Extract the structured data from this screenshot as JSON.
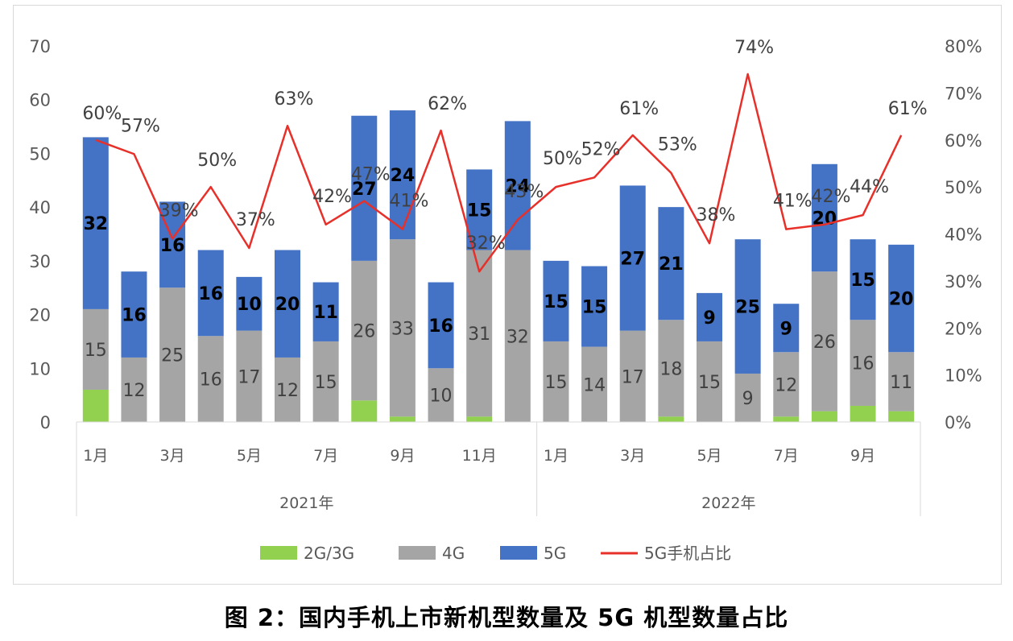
{
  "caption": "图 2：国内手机上市新机型数量及 5G 机型数量占比",
  "colors": {
    "g23": "#92d050",
    "g4": "#a5a5a5",
    "g5": "#4472c4",
    "ratio": "#e8302a"
  },
  "legend": [
    {
      "key": "g23",
      "label": "2G/3G",
      "kind": "bar"
    },
    {
      "key": "g4",
      "label": "4G",
      "kind": "bar"
    },
    {
      "key": "g5",
      "label": "5G",
      "kind": "bar"
    },
    {
      "key": "ratio",
      "label": "5G手机占比",
      "kind": "line"
    }
  ],
  "chart_data": {
    "type": "bar",
    "stacked": true,
    "years": [
      {
        "label": "2021年",
        "count": 12
      },
      {
        "label": "2022年",
        "count": 10
      }
    ],
    "month_tick_labels": [
      "1月",
      "",
      "3月",
      "",
      "5月",
      "",
      "7月",
      "",
      "9月",
      "",
      "11月",
      "",
      "1月",
      "",
      "3月",
      "",
      "5月",
      "",
      "7月",
      "",
      "9月",
      ""
    ],
    "y_left": {
      "min": 0,
      "max": 70,
      "ticks": [
        "0",
        "10",
        "20",
        "30",
        "40",
        "50",
        "60",
        "70"
      ]
    },
    "y_right": {
      "min": 0,
      "max": 80,
      "ticks": [
        "0%",
        "10%",
        "20%",
        "30%",
        "40%",
        "50%",
        "60%",
        "70%",
        "80%"
      ]
    },
    "series": [
      {
        "name": "2G/3G",
        "values": [
          6,
          0,
          0,
          0,
          0,
          0,
          0,
          4,
          1,
          0,
          1,
          0,
          0,
          0,
          0,
          1,
          0,
          0,
          1,
          2,
          3,
          2
        ]
      },
      {
        "name": "4G",
        "values": [
          15,
          12,
          25,
          16,
          17,
          12,
          15,
          26,
          33,
          10,
          31,
          32,
          15,
          14,
          17,
          18,
          15,
          9,
          12,
          26,
          16,
          11
        ],
        "labels": [
          "15",
          "12",
          "25",
          "16",
          "17",
          "12",
          "15",
          "26",
          "33",
          "10",
          "31",
          "32",
          "15",
          "14",
          "17",
          "18",
          "15",
          "9",
          "12",
          "26",
          "16",
          "11"
        ]
      },
      {
        "name": "5G",
        "values": [
          32,
          16,
          16,
          16,
          10,
          20,
          11,
          27,
          24,
          16,
          15,
          24,
          15,
          15,
          27,
          21,
          9,
          25,
          9,
          20,
          15,
          20
        ],
        "labels": [
          "32",
          "16",
          "16",
          "16",
          "10",
          "20",
          "11",
          "27",
          "24",
          "16",
          "15",
          "24",
          "15",
          "15",
          "27",
          "21",
          "9",
          "25",
          "9",
          "20",
          "15",
          "20"
        ]
      },
      {
        "name": "5G手机占比",
        "axis": "right",
        "values": [
          60,
          57,
          39,
          50,
          37,
          63,
          42,
          47,
          41,
          62,
          32,
          43,
          50,
          52,
          61,
          53,
          38,
          74,
          41,
          42,
          44,
          61
        ],
        "labels": [
          "60%",
          "57%",
          "39%",
          "50%",
          "37%",
          "63%",
          "42%",
          "47%",
          "41%",
          "62%",
          "32%",
          "43%",
          "50%",
          "52%",
          "61%",
          "53%",
          "38%",
          "74%",
          "41%",
          "42%",
          "44%",
          "61%"
        ]
      }
    ],
    "legend_position": "bottom",
    "grid": false
  }
}
